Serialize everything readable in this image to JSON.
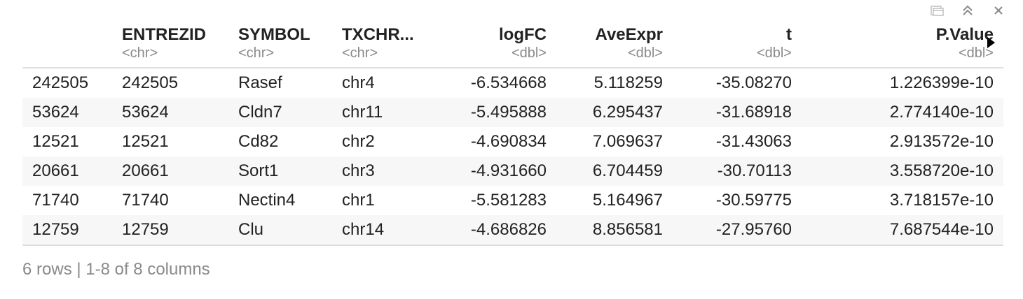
{
  "toolbar": {
    "icons": [
      "open-in-window-icon",
      "collapse-icon",
      "close-icon"
    ]
  },
  "table": {
    "columns": [
      {
        "name": "",
        "type": "",
        "align": "l"
      },
      {
        "name": "ENTREZID",
        "type": "<chr>",
        "align": "l"
      },
      {
        "name": "SYMBOL",
        "type": "<chr>",
        "align": "l"
      },
      {
        "name": "TXCHR...",
        "type": "<chr>",
        "align": "l"
      },
      {
        "name": "logFC",
        "type": "<dbl>",
        "align": "r"
      },
      {
        "name": "AveExpr",
        "type": "<dbl>",
        "align": "r"
      },
      {
        "name": "t",
        "type": "<dbl>",
        "align": "r"
      },
      {
        "name": "P.Value",
        "type": "<dbl>",
        "align": "r"
      }
    ],
    "rows": [
      [
        "242505",
        "242505",
        "Rasef",
        "chr4",
        "-6.534668",
        "5.118259",
        "-35.08270",
        "1.226399e-10"
      ],
      [
        "53624",
        "53624",
        "Cldn7",
        "chr11",
        "-5.495888",
        "6.295437",
        "-31.68918",
        "2.774140e-10"
      ],
      [
        "12521",
        "12521",
        "Cd82",
        "chr2",
        "-4.690834",
        "7.069637",
        "-31.43063",
        "2.913572e-10"
      ],
      [
        "20661",
        "20661",
        "Sort1",
        "chr3",
        "-4.931660",
        "6.704459",
        "-30.70113",
        "3.558720e-10"
      ],
      [
        "71740",
        "71740",
        "Nectin4",
        "chr1",
        "-5.581283",
        "5.164967",
        "-30.59775",
        "3.718157e-10"
      ],
      [
        "12759",
        "12759",
        "Clu",
        "chr14",
        "-4.686826",
        "8.856581",
        "-27.95760",
        "7.687544e-10"
      ]
    ]
  },
  "footer": {
    "summary": "6 rows | 1-8 of 8 columns"
  },
  "colors": {
    "header_text": "#222222",
    "type_text": "#8a8a8a",
    "stripe": "#f7f7f7",
    "border": "#dedede",
    "icon": "#9a9a9a"
  }
}
